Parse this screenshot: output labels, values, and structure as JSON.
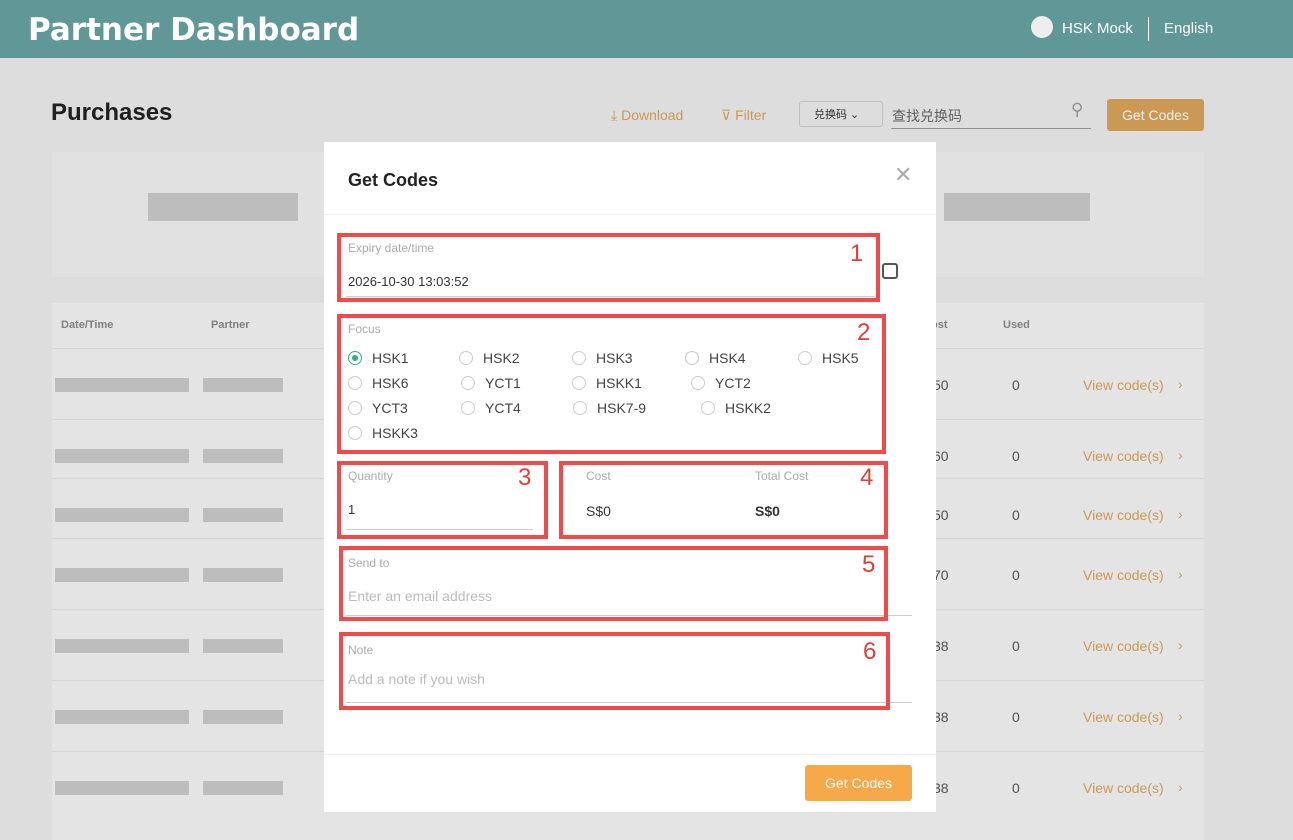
{
  "header": {
    "title": "Partner Dashboard",
    "user": "HSK Mock",
    "language": "English"
  },
  "page": {
    "title": "Purchases",
    "download": "Download",
    "filter": "Filter",
    "search_type": "兑换码",
    "search_placeholder": "查找兑换码",
    "button": "Get Codes",
    "table": {
      "headers": [
        "Date/Time",
        "Partner",
        "ost",
        "Used"
      ],
      "rows": [
        {
          "cost": "50",
          "used": "0",
          "action": "View code(s)"
        },
        {
          "cost": "60",
          "used": "0",
          "action": "View code(s)"
        },
        {
          "cost": "50",
          "used": "0",
          "action": "View code(s)"
        },
        {
          "cost": "70",
          "used": "0",
          "action": "View code(s)"
        },
        {
          "cost": "38",
          "used": "0",
          "action": "View code(s)"
        },
        {
          "cost": "38",
          "used": "0",
          "action": "View code(s)"
        },
        {
          "cost": "38",
          "used": "0",
          "action": "View code(s)"
        }
      ]
    }
  },
  "modal": {
    "title": "Get Codes",
    "expiry": {
      "label": "Expiry date/time",
      "value": "2026-10-30 13:03:52"
    },
    "focus": {
      "label": "Focus",
      "options": [
        "HSK1",
        "HSK2",
        "HSK3",
        "HSK4",
        "HSK5",
        "HSK6",
        "YCT1",
        "HSKK1",
        "YCT2",
        "YCT3",
        "YCT4",
        "HSK7-9",
        "HSKK2",
        "HSKK3"
      ],
      "selected": "HSK1"
    },
    "quantity": {
      "label": "Quantity",
      "value": "1"
    },
    "cost": {
      "label": "Cost",
      "value": "S$0"
    },
    "total_cost": {
      "label": "Total Cost",
      "value": "S$0"
    },
    "send_to": {
      "label": "Send to",
      "placeholder": "Enter an email address"
    },
    "note": {
      "label": "Note",
      "placeholder": "Add a note if you wish"
    },
    "button": "Get Codes"
  },
  "annotations": [
    "1",
    "2",
    "3",
    "4",
    "5",
    "6"
  ]
}
